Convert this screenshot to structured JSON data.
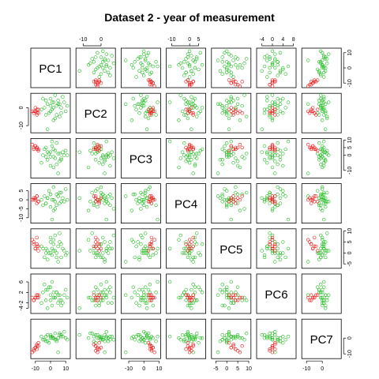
{
  "chart_data": {
    "type": "scatter",
    "title": "Dataset 2 - year of measurement",
    "variables": [
      "PC1",
      "PC2",
      "PC3",
      "PC4",
      "PC5",
      "PC6",
      "PC7"
    ],
    "ranges": {
      "PC1": [
        -13,
        13
      ],
      "PC2": [
        -14,
        8
      ],
      "PC3": [
        -15,
        11
      ],
      "PC4": [
        -13,
        9
      ],
      "PC5": [
        -7,
        11
      ],
      "PC6": [
        -6,
        9
      ],
      "PC7": [
        -13,
        12
      ]
    },
    "axis_ticks": {
      "top": {
        "PC2": [
          "-10",
          "0"
        ],
        "PC4": [
          "-10",
          "0",
          "5"
        ],
        "PC6": [
          "-4",
          "0",
          "4",
          "8"
        ]
      },
      "bottom": {
        "PC1": [
          "-10",
          "0",
          "10"
        ],
        "PC3": [
          "-10",
          "0",
          "10"
        ],
        "PC5": [
          "-5",
          "0",
          "5",
          "10"
        ],
        "PC7": [
          "-10",
          "0"
        ]
      },
      "left": {
        "PC2": [
          "0",
          "-10"
        ],
        "PC4": [
          "5",
          "0",
          "-5",
          "-10"
        ],
        "PC6": [
          "6",
          "2",
          "-2",
          "-4"
        ]
      },
      "right": {
        "PC1": [
          "10",
          "0",
          "-10"
        ],
        "PC3": [
          "10",
          "5",
          "0",
          "-10"
        ],
        "PC5": [
          "10",
          "5",
          "0",
          "-5"
        ],
        "PC7": [
          "0",
          "-10"
        ]
      }
    },
    "series": [
      {
        "name": "",
        "color": "#22bb22",
        "points": [
          [
            2,
            3,
            -1,
            0,
            1,
            0,
            0
          ],
          [
            -3,
            -4,
            5,
            -2,
            2,
            -1,
            1
          ],
          [
            4,
            1,
            -6,
            3,
            -2,
            2,
            -1
          ],
          [
            0,
            -2,
            2,
            -4,
            0,
            1,
            2
          ],
          [
            5,
            4,
            1,
            2,
            3,
            -2,
            0
          ],
          [
            -2,
            2,
            -3,
            1,
            -3,
            3,
            -2
          ],
          [
            3,
            -6,
            3,
            -1,
            1,
            0,
            3
          ],
          [
            7,
            0,
            -2,
            4,
            4,
            -1,
            1
          ],
          [
            -5,
            5,
            0,
            -3,
            2,
            2,
            -1
          ],
          [
            1,
            -1,
            6,
            0,
            -1,
            -3,
            0
          ],
          [
            6,
            2,
            -4,
            -2,
            5,
            1,
            2
          ],
          [
            -1,
            -3,
            1,
            5,
            0,
            4,
            -3
          ],
          [
            8,
            6,
            2,
            1,
            2,
            -2,
            1
          ],
          [
            2,
            -7,
            -8,
            -6,
            6,
            0,
            0
          ],
          [
            -4,
            0,
            4,
            2,
            -2,
            5,
            -1
          ],
          [
            9,
            3,
            0,
            -1,
            1,
            1,
            4
          ],
          [
            0,
            1,
            -1,
            3,
            7,
            -1,
            0
          ],
          [
            4,
            -4,
            8,
            -3,
            0,
            2,
            -2
          ],
          [
            -6,
            -1,
            -5,
            0,
            3,
            -2,
            1
          ],
          [
            10,
            -2,
            3,
            6,
            -1,
            3,
            0
          ],
          [
            3,
            7,
            -2,
            -5,
            8,
            0,
            -1
          ],
          [
            -2,
            -12,
            2,
            1,
            1,
            -4,
            2
          ],
          [
            5,
            2,
            -12,
            2,
            -4,
            1,
            -9
          ],
          [
            1,
            3,
            9,
            -11,
            2,
            6,
            1
          ],
          [
            6,
            -5,
            1,
            4,
            9,
            -1,
            3
          ],
          [
            -3,
            4,
            -1,
            -2,
            0,
            3,
            -2
          ],
          [
            2,
            0,
            4,
            7,
            4,
            2,
            0
          ],
          [
            7,
            -3,
            -3,
            -1,
            -2,
            -3,
            2
          ],
          [
            11,
            1,
            0,
            0,
            0,
            0,
            -1
          ],
          [
            0,
            5,
            -7,
            3,
            5,
            4,
            1
          ]
        ]
      },
      {
        "name": "",
        "color": "#ee1111",
        "points": [
          [
            -8,
            -3,
            4,
            -1,
            3,
            0,
            -5
          ],
          [
            -9,
            -1,
            5,
            -2,
            4,
            1,
            -7
          ],
          [
            -10,
            -2,
            6,
            0,
            2,
            0,
            -6
          ],
          [
            -11,
            -3,
            5,
            1,
            5,
            -1,
            -8
          ],
          [
            -9,
            -4,
            4,
            2,
            3,
            1,
            -4
          ],
          [
            -12,
            -2,
            7,
            0,
            6,
            0,
            -9
          ],
          [
            -8,
            -1,
            3,
            -1,
            1,
            1,
            -3
          ],
          [
            -10,
            0,
            6,
            1,
            2,
            0,
            -6
          ],
          [
            -11,
            -2,
            4,
            0,
            4,
            -1,
            -7
          ],
          [
            -9,
            -3,
            5,
            2,
            7,
            0,
            -5
          ]
        ]
      }
    ]
  }
}
